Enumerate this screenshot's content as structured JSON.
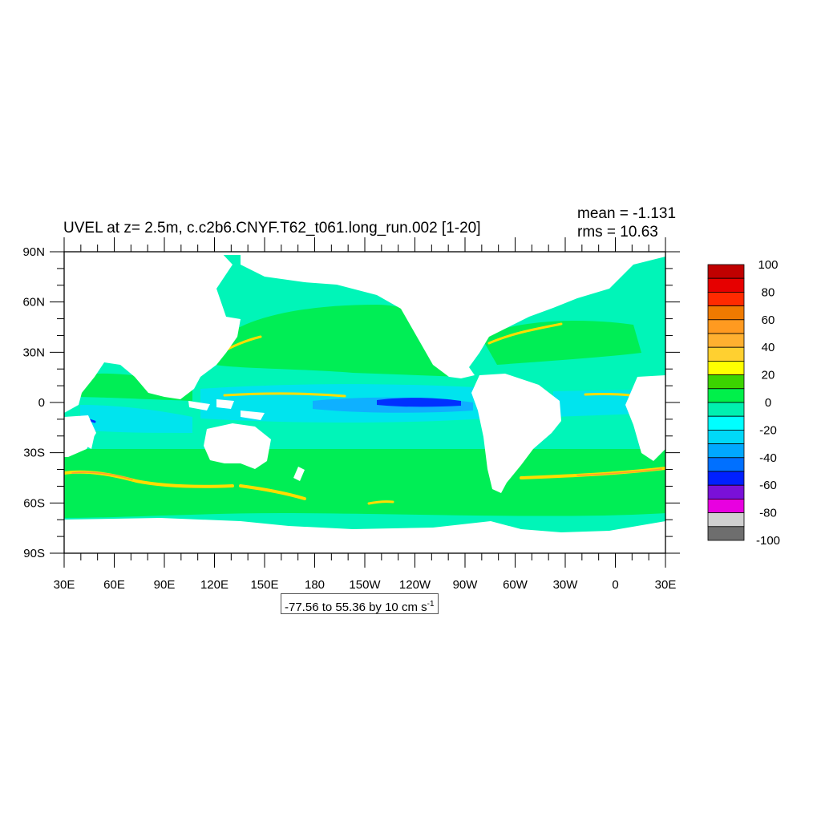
{
  "figure": {
    "title": "UVEL at z=   2.5m, c.c2b6.CNYF.T62_t061.long_run.002 [1-20]",
    "mean_label": "mean = -1.131",
    "rms_label": "rms = 10.63",
    "contour_info": "-77.56 to 55.36 by 10 cm s",
    "contour_info_exponent": "-1"
  },
  "axes": {
    "y_ticks": [
      "90N",
      "60N",
      "30N",
      "0",
      "30S",
      "60S",
      "90S"
    ],
    "x_ticks": [
      "30E",
      "60E",
      "90E",
      "120E",
      "150E",
      "180",
      "150W",
      "120W",
      "90W",
      "60W",
      "30W",
      "0",
      "30E"
    ]
  },
  "colorbar": {
    "labels": [
      "100",
      "80",
      "60",
      "40",
      "20",
      "0",
      "-20",
      "-40",
      "-60",
      "-80",
      "-100"
    ],
    "colors": [
      "#c00000",
      "#e60000",
      "#ff2a00",
      "#ef7a00",
      "#ff9a20",
      "#ffb030",
      "#ffd030",
      "#ffff00",
      "#3cd400",
      "#00f04a",
      "#00f0b0",
      "#00ffff",
      "#00d8f8",
      "#00a8ff",
      "#0070ff",
      "#0020ff",
      "#7a10d8",
      "#e800e0",
      "#d0d0d0",
      "#6e6e6e"
    ]
  },
  "map_colors": {
    "land": "#ffffff",
    "ocean_base": "#00f5b8",
    "weak_positive": "#00ee55",
    "moderate_positive": "#33dd11",
    "jet": "#ffdd00",
    "jet_core": "#ff9a33",
    "westward": "#00e4ee",
    "strong_westward": "#0fb0ff",
    "undercurrent": "#0030ff"
  }
}
